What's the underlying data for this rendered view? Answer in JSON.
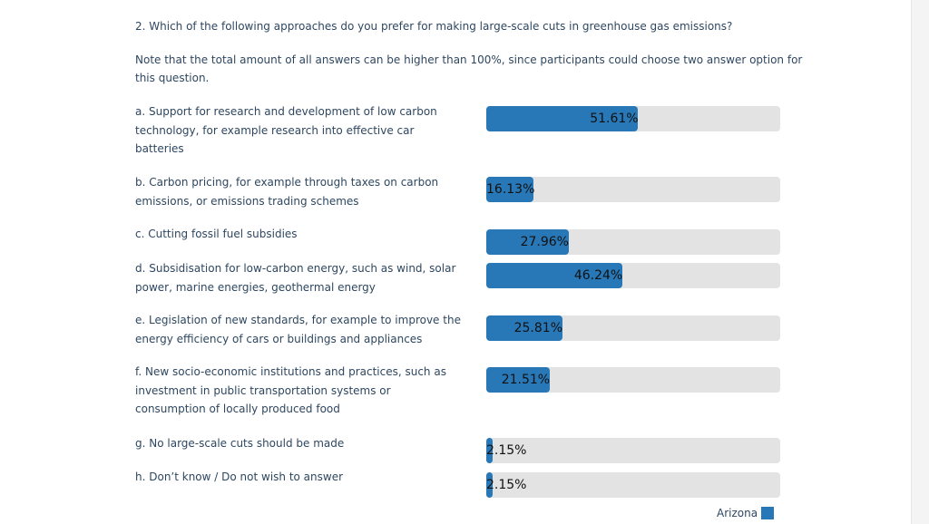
{
  "question": "2. Which of the following approaches do you prefer for making large-scale cuts in greenhouse gas emissions?",
  "note": "Note that the total amount of all answers can be higher than 100%, since participants could choose two answer option for this question.",
  "legend": {
    "label": "Arizona",
    "color": "#2878b8"
  },
  "colors": {
    "bar": "#2878b8",
    "track": "#e3e3e3",
    "text": "#2e4760"
  },
  "chart_data": {
    "type": "bar",
    "orientation": "horizontal",
    "categories": [
      "a. Support for research and development of low carbon technology, for example research into effective car batteries",
      "b. Carbon pricing, for example through taxes on carbon emissions, or emissions trading schemes",
      "c. Cutting fossil fuel subsidies",
      "d. Subsidisation for low-carbon energy, such as wind, solar power, marine energies, geothermal energy",
      "e. Legislation of new standards, for example to improve the energy efficiency of cars or buildings and appliances",
      "f. New socio-economic institutions and practices, such as investment in public transportation systems or consumption of locally produced food",
      "g. No large-scale cuts should be made",
      "h. Don’t know / Do not wish to answer"
    ],
    "series": [
      {
        "name": "Arizona",
        "values": [
          51.61,
          16.13,
          27.96,
          46.24,
          25.81,
          21.51,
          2.15,
          2.15
        ]
      }
    ],
    "value_labels": [
      "51.61%",
      "16.13%",
      "27.96%",
      "46.24%",
      "25.81%",
      "21.51%",
      "2.15%",
      "2.15%"
    ],
    "xlim": [
      0,
      100
    ],
    "grid": false,
    "legend_position": "bottom-right"
  }
}
